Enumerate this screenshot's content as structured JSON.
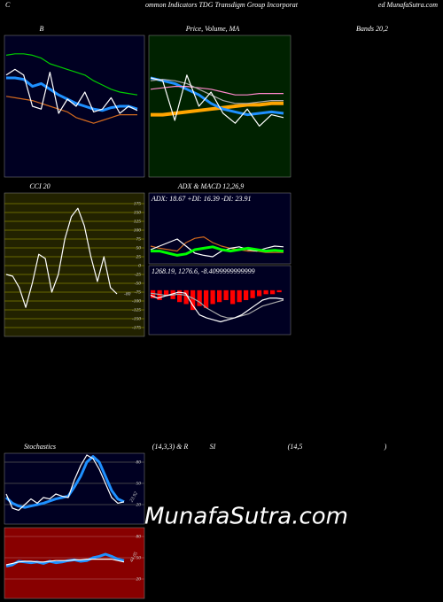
{
  "header": {
    "left": "C",
    "center": "ommon Indicators TDG Transdigm Group Incorporat",
    "right": "ed MunafaSutra.com",
    "extra": "Bands 20,2"
  },
  "stoch_titles": [
    "(14,3,3) & R",
    "SI",
    "(14,5",
    ")"
  ],
  "watermark": "MunafaSutra.com",
  "chart_data": [
    {
      "type": "line",
      "title": "B",
      "background": "#000022",
      "ylim": [
        0,
        100
      ],
      "series": [
        {
          "color": "#00cc00",
          "values": [
            86,
            87,
            87,
            86,
            84,
            80,
            78,
            76,
            74,
            72,
            68,
            65,
            62,
            60,
            59,
            58
          ]
        },
        {
          "color": "#d2691e",
          "values": [
            57,
            56,
            55,
            54,
            52,
            50,
            48,
            46,
            42,
            40,
            38,
            40,
            42,
            44,
            44,
            44
          ]
        },
        {
          "color": "#1e90ff",
          "width": 3,
          "values": [
            70,
            70,
            69,
            64,
            66,
            62,
            58,
            55,
            52,
            50,
            48,
            47,
            49,
            50,
            50,
            48
          ]
        },
        {
          "color": "#ffffff",
          "values": [
            72,
            76,
            72,
            50,
            48,
            74,
            45,
            55,
            50,
            60,
            46,
            48,
            56,
            45,
            50,
            47
          ]
        }
      ]
    },
    {
      "type": "line",
      "title": "Price, Volume, MA",
      "background": "#002200",
      "ylim": [
        0,
        100
      ],
      "series": [
        {
          "color": "#ffa500",
          "width": 4,
          "values": [
            44,
            44,
            45,
            46,
            47,
            48,
            49,
            50,
            51,
            51,
            52,
            52
          ]
        },
        {
          "color": "#1e90ff",
          "width": 3,
          "values": [
            70,
            68,
            66,
            62,
            58,
            52,
            48,
            46,
            44,
            45,
            46,
            45
          ]
        },
        {
          "color": "#ff88cc",
          "values": [
            62,
            63,
            64,
            64,
            63,
            62,
            60,
            58,
            58,
            59,
            59,
            59
          ]
        },
        {
          "color": "#aaaaaa",
          "values": [
            68,
            69,
            68,
            66,
            62,
            58,
            54,
            52,
            52,
            53,
            54,
            54
          ]
        },
        {
          "color": "#ffffff",
          "values": [
            70,
            68,
            40,
            72,
            50,
            60,
            45,
            38,
            48,
            36,
            44,
            42
          ]
        }
      ]
    },
    {
      "type": "line",
      "title": "CCI 20",
      "background": "#222200",
      "grid_color": "#808000",
      "ylim": [
        -200,
        205
      ],
      "yticks": [
        175,
        150,
        125,
        100,
        75,
        50,
        25,
        0,
        -25,
        -50,
        -75,
        -100,
        -125,
        -150,
        -175
      ],
      "last_value_label": "-80",
      "series": [
        {
          "color": "#ffffff",
          "values": [
            -25,
            -30,
            -62,
            -118,
            -50,
            32,
            20,
            -75,
            -25,
            75,
            138,
            162,
            112,
            25,
            -45,
            25,
            -62,
            -80
          ]
        }
      ]
    },
    {
      "type": "line",
      "title": "ADX  & MACD 12,26,9",
      "text": "ADX: 18.67 +DI: 16.39 -DI: 23.91",
      "background": "#000022",
      "ylim": [
        0,
        100
      ],
      "series": [
        {
          "color": "#d2691e",
          "values": [
            25,
            22,
            20,
            18,
            30,
            36,
            38,
            30,
            25,
            22,
            20,
            18,
            18,
            16,
            16,
            16
          ]
        },
        {
          "color": "#ffffff",
          "values": [
            20,
            25,
            30,
            35,
            25,
            15,
            12,
            10,
            18,
            22,
            24,
            20,
            18,
            22,
            25,
            24
          ]
        },
        {
          "color": "#00ff00",
          "width": 3,
          "values": [
            18,
            18,
            15,
            12,
            14,
            20,
            22,
            24,
            20,
            18,
            20,
            22,
            20,
            18,
            19,
            18
          ]
        }
      ]
    },
    {
      "type": "line",
      "text": "1268.19,  1276.6,  -8.4099999999999",
      "background": "#000022",
      "ylim": [
        -45,
        25
      ],
      "bars": {
        "color": "#ff0000",
        "values": [
          -8,
          -10,
          -6,
          -9,
          -12,
          -14,
          -20,
          -16,
          -18,
          -14,
          -12,
          -10,
          -14,
          -12,
          -10,
          -8,
          -6,
          -4,
          -4,
          -2
        ]
      },
      "series": [
        {
          "color": "#aaaaaa",
          "values": [
            -3,
            -4,
            -5,
            -5,
            -4,
            -5,
            -8,
            -12,
            -18,
            -22,
            -26,
            -28,
            -28,
            -26,
            -24,
            -20,
            -16,
            -14,
            -12,
            -10
          ]
        },
        {
          "color": "#ffffff",
          "values": [
            -5,
            -8,
            -6,
            -4,
            -2,
            -3,
            -15,
            -25,
            -28,
            -30,
            -32,
            -30,
            -28,
            -25,
            -20,
            -15,
            -10,
            -8,
            -8,
            -9
          ]
        }
      ]
    },
    {
      "type": "line",
      "title": "Stochastics",
      "background": "#000022",
      "grid_color": "#555555",
      "ylim": [
        -7.5,
        92.5
      ],
      "yticks": [
        80,
        50,
        20
      ],
      "last_value_label": "23.92",
      "series": [
        {
          "color": "#1e90ff",
          "width": 3,
          "values": [
            30,
            22,
            18,
            16,
            18,
            20,
            22,
            25,
            28,
            30,
            32,
            45,
            60,
            80,
            88,
            80,
            60,
            40,
            28,
            24
          ]
        },
        {
          "color": "#ffffff",
          "values": [
            35,
            15,
            12,
            20,
            28,
            22,
            30,
            28,
            35,
            32,
            30,
            55,
            75,
            90,
            85,
            70,
            50,
            30,
            22,
            23.92
          ]
        }
      ]
    },
    {
      "type": "line",
      "background": "#880000",
      "grid_color": "#aa4444",
      "ylim": [
        -7.5,
        92.5
      ],
      "yticks": [
        80,
        50,
        20
      ],
      "last_value_label": "44.05",
      "series": [
        {
          "color": "#1e90ff",
          "width": 3,
          "values": [
            38,
            40,
            45,
            44,
            43,
            44,
            42,
            45,
            43,
            44,
            46,
            47,
            45,
            46,
            50,
            52,
            55,
            52,
            48,
            46
          ]
        },
        {
          "color": "#ffffff",
          "values": [
            40,
            42,
            44,
            45,
            45,
            44,
            44,
            45,
            46,
            46,
            46,
            47,
            47,
            48,
            48,
            48,
            48,
            48,
            46,
            44.05
          ]
        }
      ]
    }
  ]
}
